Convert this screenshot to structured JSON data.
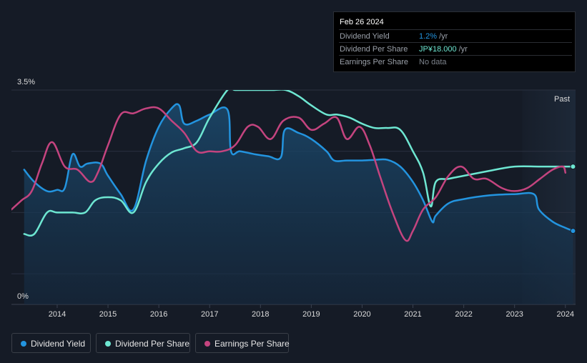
{
  "tooltip": {
    "date": "Feb 26 2024",
    "rows": [
      {
        "label": "Dividend Yield",
        "value": "1.2%",
        "unit": "/yr",
        "color": "#2394df"
      },
      {
        "label": "Dividend Per Share",
        "value": "JP¥18.000",
        "unit": "/yr",
        "color": "#6ee7d2"
      },
      {
        "label": "Earnings Per Share",
        "value": "No data",
        "unit": "",
        "color": "#7d838c"
      }
    ]
  },
  "legend": [
    {
      "label": "Dividend Yield",
      "color": "#2394df"
    },
    {
      "label": "Dividend Per Share",
      "color": "#6ee7d2"
    },
    {
      "label": "Earnings Per Share",
      "color": "#c4447f"
    }
  ],
  "chart_data": {
    "type": "line",
    "title": "",
    "past_label": "Past",
    "y_axis_labels": [
      "3.5%",
      "0%"
    ],
    "ylim": [
      0,
      3.5
    ],
    "xlim": [
      2013.1,
      2024.2
    ],
    "x_ticks": [
      "2014",
      "2015",
      "2016",
      "2017",
      "2018",
      "2019",
      "2020",
      "2021",
      "2022",
      "2023",
      "2024"
    ],
    "x_tick_values": [
      2014,
      2015,
      2016,
      2017,
      2018,
      2019,
      2020,
      2021,
      2022,
      2023,
      2024
    ],
    "forecast_start": 2023.15,
    "series": [
      {
        "name": "Dividend Yield",
        "color": "#2394df",
        "fill": true,
        "end_marker": true,
        "x": [
          2013.35,
          2013.55,
          2013.8,
          2014.0,
          2014.15,
          2014.3,
          2014.45,
          2014.6,
          2014.85,
          2015.0,
          2015.25,
          2015.5,
          2015.75,
          2016.0,
          2016.25,
          2016.4,
          2016.5,
          2016.75,
          2017.0,
          2017.35,
          2017.42,
          2017.6,
          2017.9,
          2018.15,
          2018.4,
          2018.48,
          2018.75,
          2019.0,
          2019.3,
          2019.45,
          2019.7,
          2020.0,
          2020.25,
          2020.5,
          2020.75,
          2021.0,
          2021.2,
          2021.38,
          2021.45,
          2021.7,
          2022.0,
          2022.5,
          2023.0,
          2023.38,
          2023.48,
          2023.75,
          2024.0,
          2024.15
        ],
        "y": [
          2.2,
          2.0,
          1.85,
          1.87,
          1.9,
          2.45,
          2.25,
          2.3,
          2.3,
          2.1,
          1.8,
          1.55,
          2.35,
          2.9,
          3.2,
          3.25,
          2.95,
          3.0,
          3.1,
          3.18,
          2.5,
          2.5,
          2.45,
          2.42,
          2.4,
          2.85,
          2.8,
          2.7,
          2.5,
          2.35,
          2.35,
          2.35,
          2.36,
          2.36,
          2.25,
          2.0,
          1.7,
          1.35,
          1.45,
          1.65,
          1.72,
          1.78,
          1.8,
          1.8,
          1.55,
          1.35,
          1.25,
          1.2
        ]
      },
      {
        "name": "Dividend Per Share",
        "color": "#6ee7d2",
        "end_marker": true,
        "x": [
          2013.35,
          2013.55,
          2013.8,
          2014.0,
          2014.3,
          2014.55,
          2014.75,
          2015.0,
          2015.25,
          2015.5,
          2015.75,
          2016.0,
          2016.25,
          2016.5,
          2016.75,
          2017.0,
          2017.35,
          2017.5,
          2017.75,
          2018.0,
          2018.25,
          2018.5,
          2018.75,
          2019.0,
          2019.3,
          2019.5,
          2019.75,
          2020.0,
          2020.25,
          2020.5,
          2020.75,
          2021.0,
          2021.2,
          2021.35,
          2021.45,
          2021.7,
          2022.0,
          2022.5,
          2023.0,
          2023.5,
          2024.0,
          2024.15
        ],
        "y": [
          1.15,
          1.15,
          1.5,
          1.5,
          1.5,
          1.5,
          1.7,
          1.75,
          1.7,
          1.5,
          2.0,
          2.3,
          2.48,
          2.55,
          2.65,
          3.05,
          3.5,
          3.5,
          3.5,
          3.5,
          3.5,
          3.5,
          3.4,
          3.25,
          3.1,
          3.1,
          3.05,
          2.95,
          2.88,
          2.88,
          2.85,
          2.5,
          2.15,
          1.6,
          2.0,
          2.05,
          2.1,
          2.18,
          2.25,
          2.25,
          2.25,
          2.25
        ]
      },
      {
        "name": "Earnings Per Share",
        "color": "#c4447f",
        "x": [
          2013.1,
          2013.3,
          2013.5,
          2013.7,
          2013.9,
          2014.15,
          2014.4,
          2014.65,
          2014.8,
          2015.0,
          2015.25,
          2015.5,
          2015.75,
          2016.0,
          2016.25,
          2016.5,
          2016.75,
          2017.0,
          2017.25,
          2017.5,
          2017.75,
          2017.95,
          2018.2,
          2018.45,
          2018.75,
          2019.0,
          2019.25,
          2019.5,
          2019.7,
          2019.95,
          2020.15,
          2020.35,
          2020.6,
          2020.85,
          2021.0,
          2021.2,
          2021.45,
          2021.7,
          2021.95,
          2022.2,
          2022.45,
          2022.75,
          2023.0,
          2023.25,
          2023.5,
          2023.75,
          2023.95,
          2024.0
        ],
        "y": [
          1.55,
          1.7,
          1.85,
          2.3,
          2.65,
          2.25,
          2.2,
          2.0,
          2.15,
          2.6,
          3.1,
          3.12,
          3.2,
          3.2,
          3.0,
          2.8,
          2.5,
          2.5,
          2.5,
          2.6,
          2.9,
          2.9,
          2.7,
          3.0,
          3.05,
          2.85,
          2.95,
          3.05,
          2.7,
          2.9,
          2.6,
          2.1,
          1.5,
          1.05,
          1.2,
          1.55,
          1.75,
          2.1,
          2.25,
          2.05,
          2.05,
          1.9,
          1.85,
          1.9,
          2.05,
          2.2,
          2.25,
          2.15
        ]
      }
    ]
  }
}
